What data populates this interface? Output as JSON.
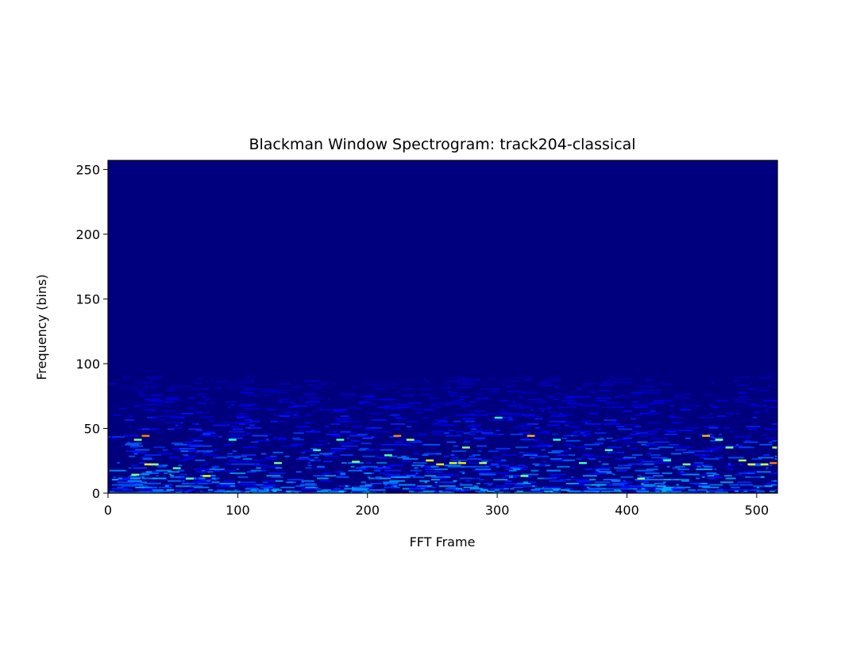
{
  "chart_data": {
    "type": "heatmap",
    "title": "Blackman Window Spectrogram: track204-classical",
    "xlabel": "FFT Frame",
    "ylabel": "Frequency (bins)",
    "xlim": [
      0,
      516
    ],
    "ylim": [
      0,
      257
    ],
    "xticks": [
      0,
      100,
      200,
      300,
      400,
      500
    ],
    "yticks": [
      0,
      50,
      100,
      150,
      200,
      250
    ],
    "colormap": "jet",
    "background_color": "#00007f",
    "grid": false,
    "hotspots": [
      {
        "frame": 28,
        "bin": 44,
        "level": 0.75
      },
      {
        "frame": 30,
        "bin": 22,
        "level": 0.6
      },
      {
        "frame": 35,
        "bin": 22,
        "level": 0.55
      },
      {
        "frame": 20,
        "bin": 14,
        "level": 0.5
      },
      {
        "frame": 22,
        "bin": 41,
        "level": 0.5
      },
      {
        "frame": 52,
        "bin": 19,
        "level": 0.45
      },
      {
        "frame": 75,
        "bin": 13,
        "level": 0.6
      },
      {
        "frame": 62,
        "bin": 11,
        "level": 0.45
      },
      {
        "frame": 95,
        "bin": 41,
        "level": 0.4
      },
      {
        "frame": 130,
        "bin": 23,
        "level": 0.5
      },
      {
        "frame": 160,
        "bin": 33,
        "level": 0.4
      },
      {
        "frame": 178,
        "bin": 41,
        "level": 0.45
      },
      {
        "frame": 190,
        "bin": 24,
        "level": 0.5
      },
      {
        "frame": 222,
        "bin": 44,
        "level": 0.75
      },
      {
        "frame": 232,
        "bin": 41,
        "level": 0.55
      },
      {
        "frame": 215,
        "bin": 29,
        "level": 0.45
      },
      {
        "frame": 247,
        "bin": 25,
        "level": 0.6
      },
      {
        "frame": 255,
        "bin": 22,
        "level": 0.65
      },
      {
        "frame": 265,
        "bin": 23,
        "level": 0.6
      },
      {
        "frame": 272,
        "bin": 23,
        "level": 0.65
      },
      {
        "frame": 275,
        "bin": 35,
        "level": 0.5
      },
      {
        "frame": 288,
        "bin": 23,
        "level": 0.55
      },
      {
        "frame": 300,
        "bin": 58,
        "level": 0.4
      },
      {
        "frame": 325,
        "bin": 44,
        "level": 0.7
      },
      {
        "frame": 320,
        "bin": 13,
        "level": 0.5
      },
      {
        "frame": 345,
        "bin": 41,
        "level": 0.4
      },
      {
        "frame": 365,
        "bin": 23,
        "level": 0.45
      },
      {
        "frame": 385,
        "bin": 33,
        "level": 0.45
      },
      {
        "frame": 410,
        "bin": 11,
        "level": 0.5
      },
      {
        "frame": 430,
        "bin": 25,
        "level": 0.45
      },
      {
        "frame": 445,
        "bin": 22,
        "level": 0.5
      },
      {
        "frame": 460,
        "bin": 44,
        "level": 0.7
      },
      {
        "frame": 470,
        "bin": 41,
        "level": 0.5
      },
      {
        "frame": 478,
        "bin": 35,
        "level": 0.5
      },
      {
        "frame": 488,
        "bin": 25,
        "level": 0.55
      },
      {
        "frame": 495,
        "bin": 22,
        "level": 0.6
      },
      {
        "frame": 505,
        "bin": 22,
        "level": 0.6
      },
      {
        "frame": 512,
        "bin": 23,
        "level": 0.75
      },
      {
        "frame": 514,
        "bin": 35,
        "level": 0.55
      }
    ]
  }
}
